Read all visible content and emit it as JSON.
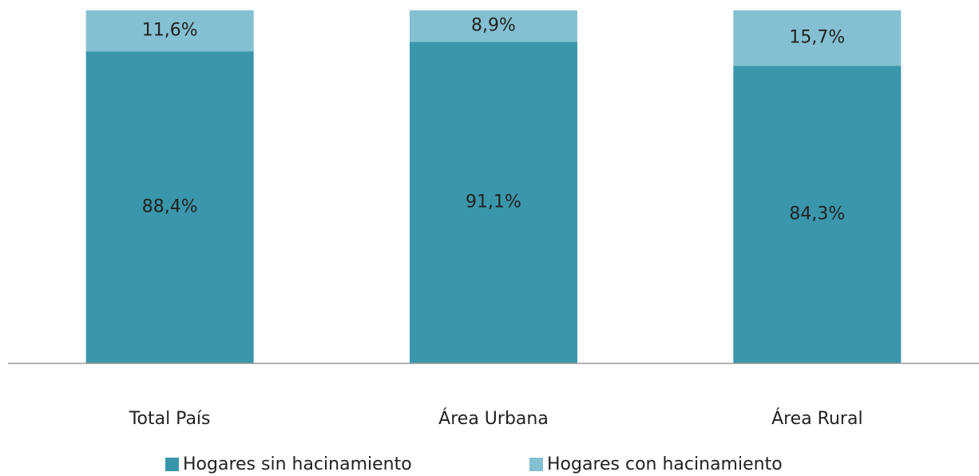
{
  "chart_data": {
    "type": "stacked_bar",
    "categories": [
      "Total País",
      "Área Urbana",
      "Área Rural"
    ],
    "series": [
      {
        "name": "Hogares sin hacinamiento",
        "color": "#3a96ab",
        "values": [
          88.4,
          91.1,
          84.3
        ],
        "value_labels": [
          "88,4%",
          "91,1%",
          "84,3%"
        ]
      },
      {
        "name": "Hogares con hacinamiento",
        "color": "#84c0d1",
        "values": [
          11.6,
          8.9,
          15.7
        ],
        "value_labels": [
          "11,6%",
          "8,9%",
          "15,7%"
        ]
      }
    ],
    "ylim": [
      0,
      100
    ],
    "legend": "bottom"
  }
}
